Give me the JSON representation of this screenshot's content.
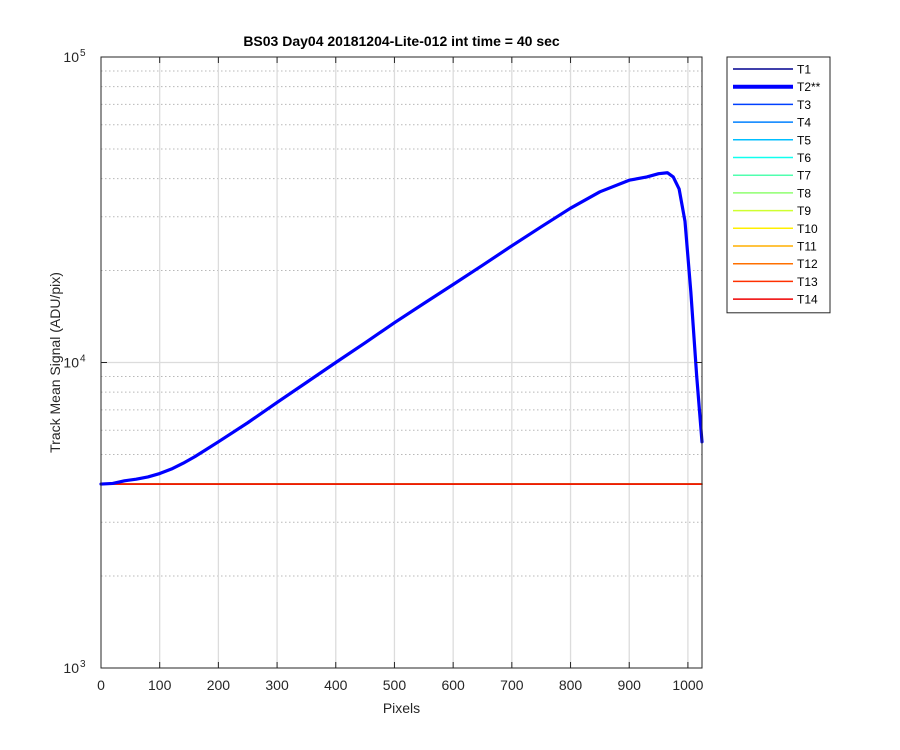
{
  "chart_data": {
    "type": "line",
    "title": "BS03 Day04 20181204-Lite-012 int time = 40 sec",
    "xlabel": "Pixels",
    "ylabel": "Track Mean Signal (ADU/pix)",
    "xlim": [
      0,
      1024
    ],
    "ylim": [
      1000,
      100000
    ],
    "yscale": "log",
    "grid": true,
    "xticks": [
      0,
      100,
      200,
      300,
      400,
      500,
      600,
      700,
      800,
      900,
      1000
    ],
    "xtick_labels": [
      "0",
      "100",
      "200",
      "300",
      "400",
      "500",
      "600",
      "700",
      "800",
      "900",
      "1000"
    ],
    "yticks": [
      1000,
      10000,
      100000
    ],
    "ytick_labels": [
      {
        "base": "10",
        "exp": "3"
      },
      {
        "base": "10",
        "exp": "4"
      },
      {
        "base": "10",
        "exp": "5"
      }
    ],
    "legend_position": "outside-right",
    "series": [
      {
        "name": "T1",
        "color": "#00008f",
        "x": [
          0,
          1024
        ],
        "y": [
          4000,
          4000
        ]
      },
      {
        "name": "T2**",
        "color": "#0000ff",
        "highlight": true,
        "x": [
          0,
          20,
          40,
          60,
          80,
          100,
          120,
          140,
          160,
          180,
          200,
          250,
          300,
          350,
          400,
          450,
          500,
          550,
          600,
          650,
          700,
          750,
          800,
          850,
          900,
          930,
          950,
          965,
          975,
          985,
          995,
          1005,
          1015,
          1024
        ],
        "y": [
          4000,
          4020,
          4100,
          4150,
          4220,
          4330,
          4480,
          4680,
          4920,
          5200,
          5500,
          6350,
          7400,
          8600,
          10000,
          11600,
          13500,
          15600,
          18000,
          20800,
          24100,
          27800,
          32000,
          36200,
          39500,
          40500,
          41500,
          41800,
          40500,
          37000,
          29000,
          17000,
          9000,
          5500
        ]
      },
      {
        "name": "T3",
        "color": "#0040ff",
        "x": [
          0,
          1024
        ],
        "y": [
          4000,
          4000
        ]
      },
      {
        "name": "T4",
        "color": "#0080ff",
        "x": [
          0,
          1024
        ],
        "y": [
          4000,
          4000
        ]
      },
      {
        "name": "T5",
        "color": "#00bfff",
        "x": [
          0,
          1024
        ],
        "y": [
          4000,
          4000
        ]
      },
      {
        "name": "T6",
        "color": "#10ffef",
        "x": [
          0,
          1024
        ],
        "y": [
          4000,
          4000
        ]
      },
      {
        "name": "T7",
        "color": "#50ffaf",
        "x": [
          0,
          1024
        ],
        "y": [
          4000,
          4000
        ]
      },
      {
        "name": "T8",
        "color": "#8fff70",
        "x": [
          0,
          1024
        ],
        "y": [
          4000,
          4000
        ]
      },
      {
        "name": "T9",
        "color": "#cfff30",
        "x": [
          0,
          1024
        ],
        "y": [
          4000,
          4000
        ]
      },
      {
        "name": "T10",
        "color": "#ffef00",
        "x": [
          0,
          1024
        ],
        "y": [
          4000,
          4000
        ]
      },
      {
        "name": "T11",
        "color": "#ffaf00",
        "x": [
          0,
          1024
        ],
        "y": [
          4000,
          4000
        ]
      },
      {
        "name": "T12",
        "color": "#ff7000",
        "x": [
          0,
          1024
        ],
        "y": [
          4000,
          4000
        ]
      },
      {
        "name": "T13",
        "color": "#ff3000",
        "x": [
          0,
          1024
        ],
        "y": [
          4000,
          4000
        ]
      },
      {
        "name": "T14",
        "color": "#ef0000",
        "x": [
          0,
          1024
        ],
        "y": [
          4000,
          4000
        ]
      }
    ]
  }
}
